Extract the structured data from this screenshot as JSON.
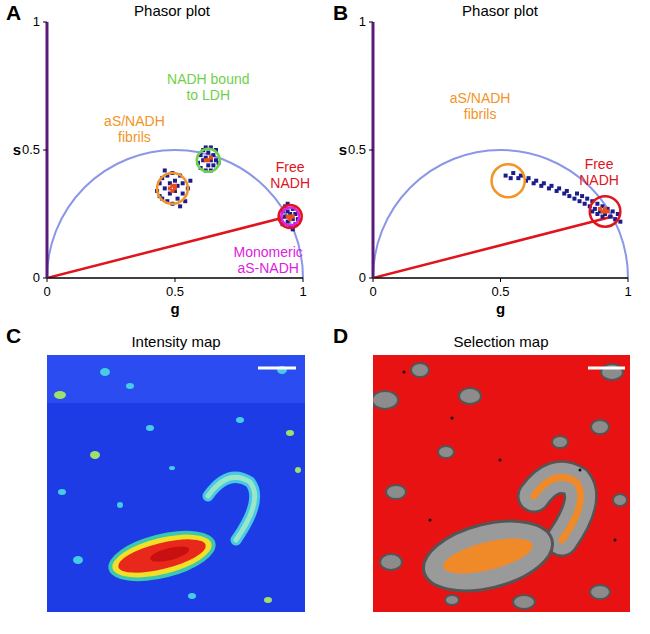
{
  "chart_data": [
    {
      "type": "scatter",
      "panel": "A",
      "title": "Phasor plot",
      "x_label": "g",
      "y_label": "s",
      "xlim": [
        0,
        1
      ],
      "ylim": [
        0,
        1
      ],
      "xticks": [
        0,
        0.5,
        1
      ],
      "yticks": [
        0,
        0.5,
        1
      ],
      "grid": false,
      "series": [
        {
          "type": "line",
          "color": "#e0141c",
          "x": [
            0,
            0.94
          ],
          "y": [
            0,
            0.24
          ]
        },
        {
          "type": "scatter",
          "color": "#1c1c8a",
          "marker": "square",
          "x": [
            0.43,
            0.44,
            0.45,
            0.45,
            0.46,
            0.47,
            0.47,
            0.48,
            0.48,
            0.49,
            0.49,
            0.5,
            0.5,
            0.51,
            0.51,
            0.52,
            0.53,
            0.53,
            0.54,
            0.55,
            0.44,
            0.52,
            0.46,
            0.56,
            0.59,
            0.6,
            0.6,
            0.61,
            0.61,
            0.62,
            0.62,
            0.63,
            0.63,
            0.64,
            0.64,
            0.65,
            0.65,
            0.66,
            0.66,
            0.67,
            0.62,
            0.64,
            0.91,
            0.92,
            0.92,
            0.93,
            0.93,
            0.94,
            0.94,
            0.95,
            0.95,
            0.96,
            0.96,
            0.97,
            0.97,
            0.98,
            0.94,
            0.96
          ],
          "y": [
            0.34,
            0.37,
            0.31,
            0.39,
            0.35,
            0.3,
            0.4,
            0.33,
            0.37,
            0.29,
            0.41,
            0.34,
            0.38,
            0.31,
            0.36,
            0.4,
            0.33,
            0.37,
            0.3,
            0.35,
            0.32,
            0.28,
            0.42,
            0.38,
            0.45,
            0.48,
            0.43,
            0.46,
            0.5,
            0.42,
            0.47,
            0.44,
            0.49,
            0.46,
            0.42,
            0.48,
            0.44,
            0.46,
            0.5,
            0.45,
            0.51,
            0.51,
            0.23,
            0.26,
            0.21,
            0.24,
            0.28,
            0.22,
            0.26,
            0.2,
            0.25,
            0.23,
            0.27,
            0.21,
            0.25,
            0.23,
            0.29,
            0.19
          ]
        },
        {
          "type": "scatter",
          "color": "#e8501a",
          "marker": "square",
          "x": [
            0.48,
            0.49,
            0.5,
            0.49,
            0.5,
            0.63,
            0.62,
            0.64,
            0.94,
            0.95,
            0.96,
            0.95
          ],
          "y": [
            0.35,
            0.34,
            0.36,
            0.36,
            0.35,
            0.46,
            0.46,
            0.47,
            0.24,
            0.24,
            0.24,
            0.23
          ]
        }
      ],
      "annotations": [
        {
          "label": [
            "aS/NADH",
            "fibrils"
          ],
          "color": "#f39425",
          "x": 0.49,
          "y": 0.35,
          "r": 0.06
        },
        {
          "label": [
            "NADH bound",
            "to LDH"
          ],
          "color": "#6fd04a",
          "x": 0.63,
          "y": 0.46,
          "r": 0.045
        },
        {
          "label": [
            "Free",
            "NADH"
          ],
          "color": "#e0141c",
          "x": 0.95,
          "y": 0.24,
          "r": 0.045
        },
        {
          "label": [
            "Monomeric",
            "aS-NADH"
          ],
          "color": "#e020e0",
          "x": 0.95,
          "y": 0.24,
          "r": 0.035
        }
      ]
    },
    {
      "type": "scatter",
      "panel": "B",
      "title": "Phasor plot",
      "x_label": "g",
      "y_label": "s",
      "xlim": [
        0,
        1
      ],
      "ylim": [
        0,
        1
      ],
      "xticks": [
        0,
        0.5,
        1
      ],
      "yticks": [
        0,
        0.5,
        1
      ],
      "grid": false,
      "series": [
        {
          "type": "line",
          "color": "#e0141c",
          "x": [
            0,
            0.94
          ],
          "y": [
            0,
            0.24
          ]
        },
        {
          "type": "scatter",
          "color": "#1c1c8a",
          "marker": "square",
          "x": [
            0.52,
            0.54,
            0.55,
            0.57,
            0.58,
            0.6,
            0.61,
            0.63,
            0.64,
            0.66,
            0.67,
            0.69,
            0.7,
            0.72,
            0.73,
            0.75,
            0.76,
            0.77,
            0.79,
            0.8,
            0.81,
            0.82,
            0.83,
            0.84,
            0.85,
            0.86,
            0.87,
            0.88,
            0.89,
            0.9,
            0.91,
            0.92,
            0.93,
            0.94,
            0.95,
            0.96,
            0.97,
            0.9,
            0.88,
            0.86
          ],
          "y": [
            0.4,
            0.39,
            0.41,
            0.39,
            0.4,
            0.38,
            0.39,
            0.37,
            0.38,
            0.36,
            0.37,
            0.35,
            0.36,
            0.34,
            0.35,
            0.33,
            0.34,
            0.32,
            0.31,
            0.33,
            0.3,
            0.32,
            0.29,
            0.31,
            0.28,
            0.3,
            0.27,
            0.29,
            0.26,
            0.28,
            0.25,
            0.27,
            0.24,
            0.26,
            0.23,
            0.25,
            0.22,
            0.24,
            0.25,
            0.26
          ]
        },
        {
          "type": "scatter",
          "color": "#e8501a",
          "marker": "square",
          "x": [
            0.89,
            0.9,
            0.91,
            0.92,
            0.91
          ],
          "y": [
            0.27,
            0.26,
            0.26,
            0.26,
            0.27
          ]
        }
      ],
      "annotations": [
        {
          "label": [
            "aS/NADH",
            "fibrils"
          ],
          "color": "#f39425",
          "x": 0.53,
          "y": 0.38,
          "r": 0.065
        },
        {
          "label": [
            "Free",
            "NADH"
          ],
          "color": "#e0141c",
          "x": 0.91,
          "y": 0.26,
          "r": 0.06
        }
      ]
    }
  ],
  "images": [
    {
      "panel": "C",
      "title": "Intensity map"
    },
    {
      "panel": "D",
      "title": "Selection map"
    }
  ]
}
